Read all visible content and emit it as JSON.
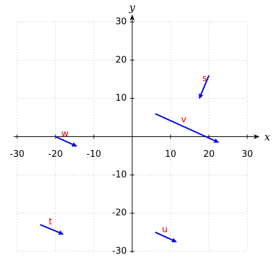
{
  "chart_data": {
    "type": "vector",
    "xlim": [
      -30,
      30
    ],
    "ylim": [
      -30,
      30
    ],
    "xticks": [
      -30,
      -20,
      -10,
      10,
      20,
      30
    ],
    "yticks": [
      -30,
      -20,
      -10,
      10,
      20,
      30
    ],
    "xlabel": "x",
    "ylabel": "y",
    "grid": true,
    "color": "#0000ee",
    "label_color": "#ee0000",
    "vectors": [
      {
        "label": "s",
        "x": 20,
        "y": 16,
        "dx": -2.5,
        "dy": -6
      },
      {
        "label": "v",
        "x": 6,
        "y": 6,
        "dx": 16.5,
        "dy": -7.5
      },
      {
        "label": "w",
        "x": -20,
        "y": 0,
        "dx": 5.5,
        "dy": -2.5
      },
      {
        "label": "t",
        "x": -24,
        "y": -23,
        "dx": 6,
        "dy": -2.5
      },
      {
        "label": "u",
        "x": 6,
        "y": -25,
        "dx": 5.5,
        "dy": -2.5
      }
    ]
  }
}
